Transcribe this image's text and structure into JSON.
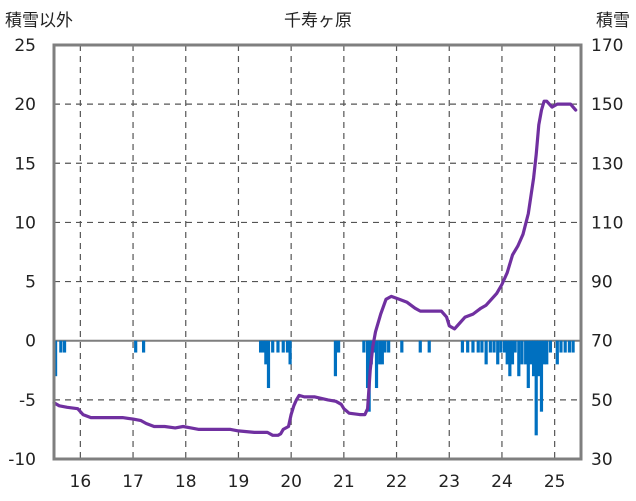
{
  "chart_data": {
    "type": "line+bar",
    "title": "千寿ヶ原",
    "left_axis_label": "積雪以外",
    "right_axis_label": "積雪",
    "x_ticks": [
      "16",
      "17",
      "18",
      "19",
      "20",
      "21",
      "22",
      "23",
      "24",
      "25"
    ],
    "left_ticks": [
      "25",
      "20",
      "15",
      "10",
      "5",
      "0",
      "-5",
      "-10"
    ],
    "right_ticks": [
      "170",
      "150",
      "130",
      "110",
      "90",
      "70",
      "50",
      "30"
    ],
    "x_range": [
      15.5,
      25.5
    ],
    "left_range": [
      -10,
      25
    ],
    "right_range": [
      30,
      170
    ],
    "grid": true,
    "series": [
      {
        "kind": "line",
        "axis": "right",
        "color": "#7030a0",
        "points": [
          [
            15.5,
            49
          ],
          [
            15.6,
            48
          ],
          [
            15.75,
            47.5
          ],
          [
            15.95,
            47
          ],
          [
            16.05,
            45
          ],
          [
            16.2,
            44
          ],
          [
            16.5,
            44
          ],
          [
            16.8,
            44
          ],
          [
            17.0,
            43.5
          ],
          [
            17.15,
            43
          ],
          [
            17.25,
            42
          ],
          [
            17.4,
            41
          ],
          [
            17.6,
            41
          ],
          [
            17.8,
            40.5
          ],
          [
            17.95,
            41
          ],
          [
            18.1,
            40.5
          ],
          [
            18.25,
            40
          ],
          [
            18.6,
            40
          ],
          [
            18.85,
            40
          ],
          [
            19.0,
            39.5
          ],
          [
            19.3,
            39
          ],
          [
            19.55,
            39
          ],
          [
            19.65,
            38
          ],
          [
            19.75,
            38
          ],
          [
            19.8,
            38.5
          ],
          [
            19.85,
            40
          ],
          [
            19.95,
            41
          ],
          [
            20.0,
            45
          ],
          [
            20.05,
            48
          ],
          [
            20.1,
            50
          ],
          [
            20.15,
            51.5
          ],
          [
            20.25,
            51
          ],
          [
            20.45,
            51
          ],
          [
            20.7,
            50
          ],
          [
            20.85,
            49.5
          ],
          [
            20.95,
            48.5
          ],
          [
            21.0,
            47
          ],
          [
            21.1,
            45.5
          ],
          [
            21.3,
            45
          ],
          [
            21.4,
            45
          ],
          [
            21.45,
            47
          ],
          [
            21.5,
            60
          ],
          [
            21.55,
            68
          ],
          [
            21.6,
            73
          ],
          [
            21.7,
            79
          ],
          [
            21.8,
            84
          ],
          [
            21.9,
            85
          ],
          [
            22.05,
            84
          ],
          [
            22.2,
            83
          ],
          [
            22.35,
            81
          ],
          [
            22.45,
            80
          ],
          [
            22.6,
            80
          ],
          [
            22.75,
            80
          ],
          [
            22.85,
            80
          ],
          [
            22.95,
            78
          ],
          [
            23.0,
            75
          ],
          [
            23.1,
            74
          ],
          [
            23.2,
            76
          ],
          [
            23.3,
            78
          ],
          [
            23.45,
            79
          ],
          [
            23.6,
            81
          ],
          [
            23.7,
            82
          ],
          [
            23.8,
            84
          ],
          [
            23.9,
            86
          ],
          [
            24.0,
            89
          ],
          [
            24.1,
            93
          ],
          [
            24.2,
            99
          ],
          [
            24.3,
            102
          ],
          [
            24.4,
            106
          ],
          [
            24.5,
            113
          ],
          [
            24.6,
            125
          ],
          [
            24.65,
            133
          ],
          [
            24.7,
            143
          ],
          [
            24.75,
            148
          ],
          [
            24.8,
            151
          ],
          [
            24.85,
            151
          ],
          [
            24.95,
            149
          ],
          [
            25.05,
            150
          ],
          [
            25.2,
            150
          ],
          [
            25.3,
            150
          ],
          [
            25.4,
            148
          ]
        ]
      },
      {
        "kind": "bar",
        "axis": "left",
        "color": "#0070c0",
        "points": [
          [
            15.53,
            -3
          ],
          [
            15.63,
            -1
          ],
          [
            15.7,
            -1
          ],
          [
            17.05,
            -1
          ],
          [
            17.2,
            -1
          ],
          [
            19.42,
            -1
          ],
          [
            19.47,
            -1
          ],
          [
            19.52,
            -2
          ],
          [
            19.57,
            -4
          ],
          [
            19.65,
            -1
          ],
          [
            19.75,
            -1
          ],
          [
            19.85,
            -1
          ],
          [
            19.93,
            -1
          ],
          [
            19.98,
            -2
          ],
          [
            20.84,
            -3
          ],
          [
            20.9,
            -1
          ],
          [
            21.38,
            -1
          ],
          [
            21.45,
            -4
          ],
          [
            21.48,
            -6
          ],
          [
            21.52,
            -2
          ],
          [
            21.57,
            -1
          ],
          [
            21.62,
            -4
          ],
          [
            21.68,
            -2
          ],
          [
            21.73,
            -2
          ],
          [
            21.78,
            -1
          ],
          [
            21.85,
            -1
          ],
          [
            22.1,
            -1
          ],
          [
            22.45,
            -1
          ],
          [
            22.62,
            -1
          ],
          [
            23.25,
            -1
          ],
          [
            23.35,
            -1
          ],
          [
            23.45,
            -1
          ],
          [
            23.55,
            -1
          ],
          [
            23.62,
            -1
          ],
          [
            23.7,
            -2
          ],
          [
            23.78,
            -1
          ],
          [
            23.85,
            -1
          ],
          [
            23.92,
            -2
          ],
          [
            23.98,
            -1
          ],
          [
            24.05,
            -1
          ],
          [
            24.1,
            -2
          ],
          [
            24.15,
            -3
          ],
          [
            24.2,
            -2
          ],
          [
            24.25,
            -1
          ],
          [
            24.32,
            -3
          ],
          [
            24.38,
            -2
          ],
          [
            24.45,
            -2
          ],
          [
            24.5,
            -4
          ],
          [
            24.55,
            -2
          ],
          [
            24.6,
            -3
          ],
          [
            24.65,
            -8
          ],
          [
            24.7,
            -3
          ],
          [
            24.75,
            -6
          ],
          [
            24.8,
            -2
          ],
          [
            24.85,
            -2
          ],
          [
            24.92,
            -1
          ],
          [
            25.05,
            -2
          ],
          [
            25.12,
            -1
          ],
          [
            25.2,
            -1
          ],
          [
            25.28,
            -1
          ],
          [
            25.35,
            -1
          ]
        ]
      }
    ]
  }
}
